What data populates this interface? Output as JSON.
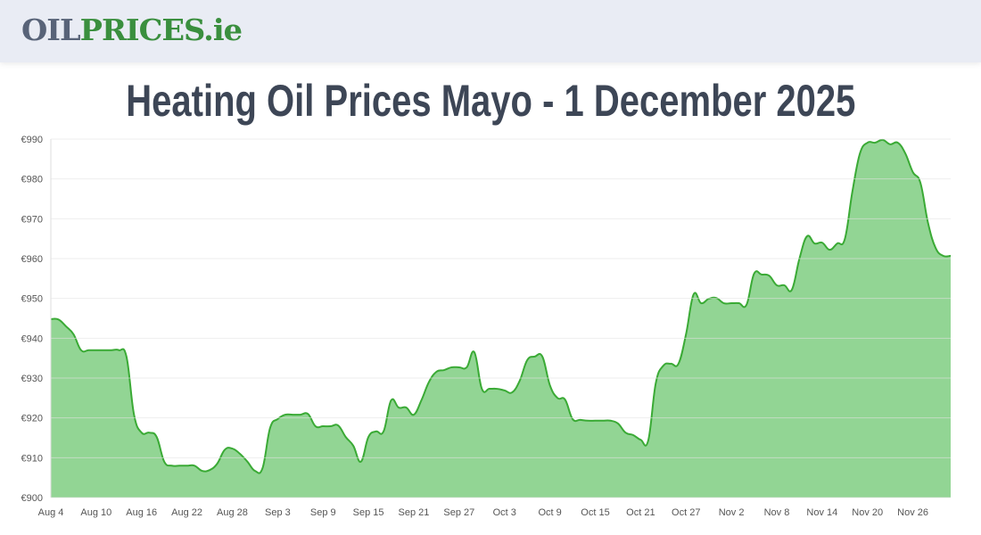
{
  "header": {
    "logo_part1": "OIL",
    "logo_part2": "PRICES.ie"
  },
  "title": "Heating Oil Prices Mayo - 1 December 2025",
  "colors": {
    "fill": "#92d594",
    "line": "#3aaa35",
    "header_bg": "#e9ecf4"
  },
  "chart_data": {
    "type": "area",
    "title": "Heating Oil Prices Mayo - 1 December 2025",
    "xlabel": "",
    "ylabel": "",
    "ylim": [
      900,
      990
    ],
    "yticks": [
      "€900",
      "€910",
      "€920",
      "€930",
      "€940",
      "€950",
      "€960",
      "€970",
      "€980",
      "€990"
    ],
    "ytick_values": [
      900,
      910,
      920,
      930,
      940,
      950,
      960,
      970,
      980,
      990
    ],
    "xticks": [
      "Aug 4",
      "Aug 10",
      "Aug 16",
      "Aug 22",
      "Aug 28",
      "Sep 3",
      "Sep 9",
      "Sep 15",
      "Sep 21",
      "Sep 27",
      "Oct 3",
      "Oct 9",
      "Oct 15",
      "Oct 21",
      "Oct 27",
      "Nov 2",
      "Nov 8",
      "Nov 14",
      "Nov 20",
      "Nov 26"
    ],
    "grid": true,
    "dates": [
      "Aug 4",
      "Aug 5",
      "Aug 6",
      "Aug 7",
      "Aug 8",
      "Aug 9",
      "Aug 10",
      "Aug 11",
      "Aug 12",
      "Aug 13",
      "Aug 14",
      "Aug 15",
      "Aug 16",
      "Aug 17",
      "Aug 18",
      "Aug 19",
      "Aug 20",
      "Aug 21",
      "Aug 22",
      "Aug 23",
      "Aug 24",
      "Aug 25",
      "Aug 26",
      "Aug 27",
      "Aug 28",
      "Aug 29",
      "Aug 30",
      "Aug 31",
      "Sep 1",
      "Sep 2",
      "Sep 3",
      "Sep 4",
      "Sep 5",
      "Sep 6",
      "Sep 7",
      "Sep 8",
      "Sep 9",
      "Sep 10",
      "Sep 11",
      "Sep 12",
      "Sep 13",
      "Sep 14",
      "Sep 15",
      "Sep 16",
      "Sep 17",
      "Sep 18",
      "Sep 19",
      "Sep 20",
      "Sep 21",
      "Sep 22",
      "Sep 23",
      "Sep 24",
      "Sep 25",
      "Sep 26",
      "Sep 27",
      "Sep 28",
      "Sep 29",
      "Sep 30",
      "Oct 1",
      "Oct 2",
      "Oct 3",
      "Oct 4",
      "Oct 5",
      "Oct 6",
      "Oct 7",
      "Oct 8",
      "Oct 9",
      "Oct 10",
      "Oct 11",
      "Oct 12",
      "Oct 13",
      "Oct 14",
      "Oct 15",
      "Oct 16",
      "Oct 17",
      "Oct 18",
      "Oct 19",
      "Oct 20",
      "Oct 21",
      "Oct 22",
      "Oct 23",
      "Oct 24",
      "Oct 25",
      "Oct 26",
      "Oct 27",
      "Oct 28",
      "Oct 29",
      "Oct 30",
      "Oct 31",
      "Nov 1",
      "Nov 2",
      "Nov 3",
      "Nov 4",
      "Nov 5",
      "Nov 6",
      "Nov 7",
      "Nov 8",
      "Nov 9",
      "Nov 10",
      "Nov 11",
      "Nov 12",
      "Nov 13",
      "Nov 14",
      "Nov 15",
      "Nov 16",
      "Nov 17",
      "Nov 18",
      "Nov 19",
      "Nov 20",
      "Nov 21",
      "Nov 22",
      "Nov 23",
      "Nov 24",
      "Nov 25",
      "Nov 26",
      "Nov 27",
      "Nov 28",
      "Nov 29",
      "Nov 30",
      "Dec 1"
    ],
    "values": [
      944.8,
      944.7,
      943,
      941,
      937,
      937,
      937,
      937,
      937,
      937,
      935.4,
      920.8,
      916.3,
      916.3,
      915.2,
      909,
      908,
      908,
      908,
      908,
      906.7,
      906.9,
      908.5,
      912,
      912.3,
      911,
      909,
      906.7,
      907.4,
      917.5,
      919.7,
      920.8,
      920.8,
      920.8,
      921,
      917.9,
      917.9,
      917.9,
      918.1,
      915.2,
      913,
      909,
      915.2,
      916.6,
      916.6,
      924.4,
      922.6,
      922.6,
      920.8,
      924.4,
      929,
      931.6,
      932,
      932.7,
      932.7,
      932.7,
      936.5,
      927.3,
      927.3,
      927.3,
      926.9,
      926.4,
      929.3,
      934.5,
      935.4,
      935.4,
      928.2,
      925,
      924.6,
      919.7,
      919.5,
      919.3,
      919.3,
      919.3,
      919.3,
      918.6,
      916.3,
      915.7,
      914.5,
      914.3,
      928.7,
      933.1,
      933.6,
      933.6,
      941,
      951,
      948.8,
      949.9,
      950.1,
      948.8,
      948.8,
      948.8,
      948.4,
      956.2,
      956,
      955.7,
      953.3,
      953.3,
      952.2,
      960,
      965.6,
      963.8,
      964,
      962.2,
      963.8,
      964.9,
      976.8,
      986.4,
      989.1,
      989.1,
      989.8,
      988.7,
      989.1,
      986.4,
      981.7,
      979,
      969,
      962.7,
      960.7,
      960.7
    ]
  }
}
